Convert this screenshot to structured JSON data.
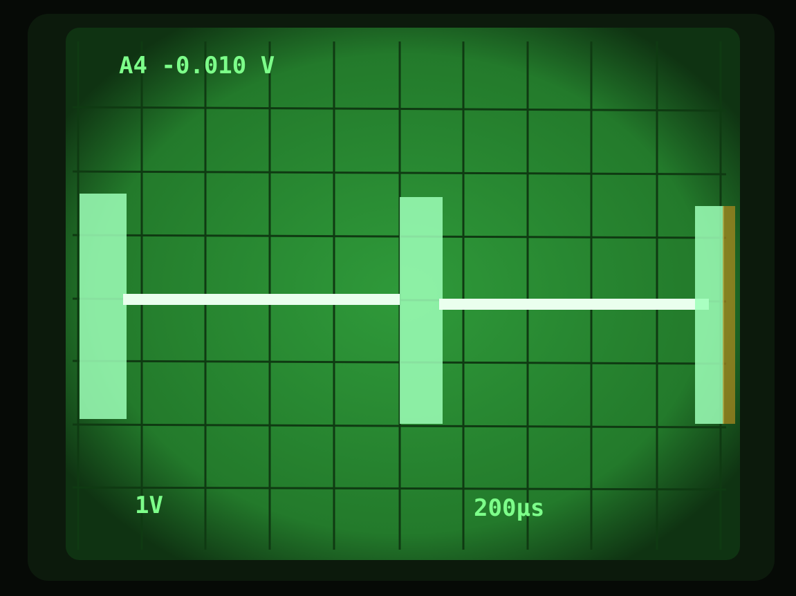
{
  "readouts": {
    "trigger": "A4 -0.010 V",
    "volts_per_div": "1V",
    "time_per_div": "200µs"
  }
}
